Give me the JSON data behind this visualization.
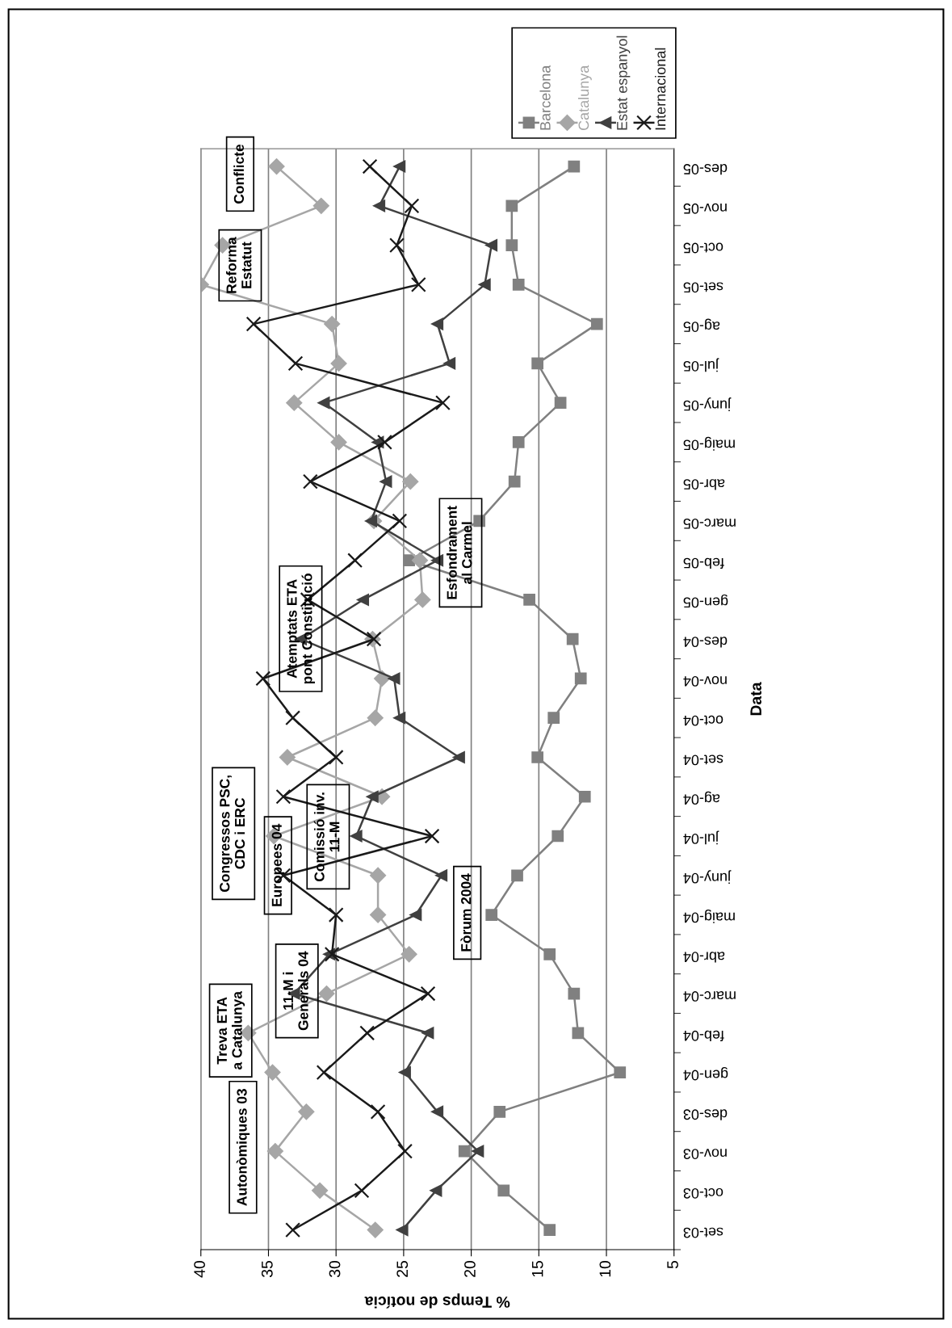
{
  "chart_data": {
    "type": "line",
    "orientation": "horizontal",
    "xlabel": "% Temps de notícia",
    "ylabel": "Data",
    "categories": [
      "des-05",
      "nov-05",
      "oct-05",
      "set-05",
      "ag-05",
      "jul-05",
      "juny-05",
      "maig-05",
      "abr-05",
      "marc-05",
      "feb-05",
      "gen-05",
      "des-04",
      "nov-04",
      "oct-04",
      "set-04",
      "ag-04",
      "jul-04",
      "juny-04",
      "maig-04",
      "abr-04",
      "marc-04",
      "feb-04",
      "gen-04",
      "des-03",
      "nov-03",
      "oct-03",
      "set-03"
    ],
    "series": [
      {
        "name": "Barcelona",
        "color": "#808080",
        "marker": "square",
        "values": [
          12.4,
          17.0,
          17.0,
          16.5,
          10.7,
          15.1,
          13.4,
          16.5,
          16.8,
          19.4,
          24.6,
          15.7,
          12.5,
          11.9,
          13.9,
          15.1,
          11.6,
          13.6,
          16.6,
          18.5,
          14.2,
          12.4,
          12.1,
          9.0,
          17.9,
          20.5,
          17.6,
          14.2
        ]
      },
      {
        "name": "Catalunya",
        "color": "#a6a6a6",
        "marker": "diamond",
        "values": [
          34.4,
          31.1,
          38.4,
          40,
          30.3,
          29.8,
          33.1,
          29.8,
          24.5,
          27.2,
          23.8,
          23.6,
          27.3,
          26.6,
          27.1,
          33.6,
          26.6,
          34.6,
          26.9,
          26.9,
          24.6,
          30.7,
          36.5,
          34.7,
          32.2,
          34.5,
          31.2,
          27.1
        ]
      },
      {
        "name": "Estat espanyol",
        "color": "#404040",
        "marker": "triangle",
        "values": [
          25.3,
          26.8,
          18.5,
          19.0,
          22.5,
          21.6,
          30.9,
          26.9,
          26.3,
          27.4,
          22.5,
          28.0,
          32.6,
          25.7,
          25.3,
          20.9,
          27.3,
          28.5,
          22.2,
          24.1,
          30.5,
          33.1,
          23.2,
          24.9,
          22.5,
          19.5,
          22.6,
          25.1
        ]
      },
      {
        "name": "Internacional",
        "color": "#1a1a1a",
        "marker": "cross",
        "values": [
          27.5,
          24.4,
          25.5,
          23.9,
          36.1,
          33.0,
          22.1,
          26.4,
          31.9,
          25.3,
          28.6,
          32.1,
          27.2,
          35.4,
          33.2,
          30.0,
          33.9,
          22.9,
          33.9,
          30.0,
          30.3,
          23.2,
          27.7,
          30.9,
          26.9,
          24.9,
          28.1,
          33.2
        ]
      }
    ],
    "xlim": [
      40,
      5
    ],
    "xticks": [
      40,
      35,
      30,
      25,
      20,
      15,
      10,
      5
    ],
    "grid": "x",
    "legend": "top right",
    "annotations": [
      "Autonòmiques 03",
      "Treva ETA\na Catalunya",
      "11-M i\nGenerals 04",
      "Congressos PSC,\nCDC i ERC",
      "Europees 04",
      "Comissió inv.\n11-M",
      "Fòrum 2004",
      "Atemptats ETA\npont Constitució",
      "Esfondrament\nal Carmel",
      "Reforma\nEstatut",
      "Conflicte"
    ]
  }
}
